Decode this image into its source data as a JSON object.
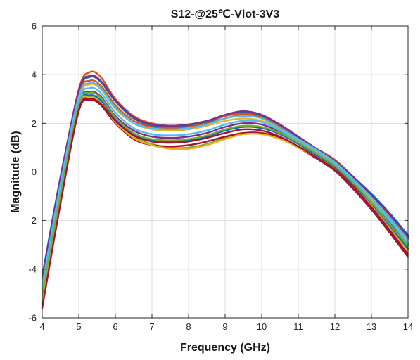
{
  "chart_data": {
    "type": "line",
    "title": "S12-@25℃-Vlot-3V3",
    "xlabel": "Frequency (GHz)",
    "ylabel": "Magnitude (dB)",
    "xlim": [
      4,
      14
    ],
    "ylim": [
      -6,
      6
    ],
    "xticks": [
      4,
      5,
      6,
      7,
      8,
      9,
      10,
      11,
      12,
      13,
      14
    ],
    "yticks": [
      -6,
      -4,
      -2,
      0,
      2,
      4,
      6
    ],
    "grid": true,
    "legend": "none",
    "x": [
      4.0,
      4.5,
      5.0,
      5.3,
      5.6,
      6.0,
      6.5,
      7.0,
      7.5,
      8.0,
      8.5,
      9.0,
      9.5,
      10.0,
      10.5,
      11.0,
      11.5,
      12.0,
      12.5,
      13.0,
      13.5,
      14.0
    ],
    "series": [
      {
        "color": "#0072BD",
        "values": [
          -4.3,
          -0.2,
          3.3,
          3.9,
          3.7,
          2.9,
          2.2,
          1.9,
          1.85,
          1.9,
          2.05,
          2.3,
          2.45,
          2.3,
          1.9,
          1.4,
          0.9,
          0.45,
          -0.2,
          -0.9,
          -1.7,
          -2.6
        ]
      },
      {
        "color": "#D95319",
        "values": [
          -4.5,
          -0.3,
          3.4,
          4.1,
          3.9,
          3.0,
          2.3,
          2.0,
          1.9,
          1.95,
          2.1,
          2.3,
          2.4,
          2.25,
          1.85,
          1.35,
          0.95,
          0.5,
          -0.2,
          -1.0,
          -1.8,
          -2.7
        ]
      },
      {
        "color": "#EDB120",
        "values": [
          -4.8,
          -0.6,
          3.0,
          3.6,
          3.4,
          2.6,
          2.0,
          1.75,
          1.7,
          1.75,
          1.9,
          2.1,
          2.2,
          2.1,
          1.75,
          1.3,
          0.85,
          0.35,
          -0.35,
          -1.1,
          -1.95,
          -2.9
        ]
      },
      {
        "color": "#7E2F8E",
        "values": [
          -5.0,
          -0.8,
          2.8,
          3.3,
          3.1,
          2.3,
          1.7,
          1.45,
          1.4,
          1.45,
          1.6,
          1.85,
          2.0,
          1.95,
          1.65,
          1.2,
          0.75,
          0.25,
          -0.45,
          -1.25,
          -2.1,
          -3.0
        ]
      },
      {
        "color": "#77AC30",
        "values": [
          -5.2,
          -1.0,
          2.6,
          3.1,
          2.9,
          2.1,
          1.45,
          1.15,
          1.0,
          1.0,
          1.15,
          1.4,
          1.6,
          1.6,
          1.4,
          1.05,
          0.65,
          0.15,
          -0.55,
          -1.35,
          -2.25,
          -3.2
        ]
      },
      {
        "color": "#4DBEEE",
        "values": [
          -4.9,
          -0.7,
          2.9,
          3.45,
          3.25,
          2.45,
          1.8,
          1.55,
          1.5,
          1.55,
          1.7,
          1.95,
          2.1,
          2.05,
          1.7,
          1.25,
          0.8,
          0.3,
          -0.4,
          -1.2,
          -2.0,
          -2.95
        ]
      },
      {
        "color": "#A2142F",
        "values": [
          -5.5,
          -1.2,
          2.5,
          2.95,
          2.75,
          2.0,
          1.35,
          1.1,
          1.05,
          1.1,
          1.25,
          1.45,
          1.6,
          1.6,
          1.4,
          1.0,
          0.55,
          0.05,
          -0.7,
          -1.55,
          -2.5,
          -3.5
        ]
      },
      {
        "color": "#0072BD",
        "values": [
          -5.4,
          -1.1,
          2.7,
          3.15,
          2.95,
          2.2,
          1.55,
          1.3,
          1.25,
          1.3,
          1.45,
          1.7,
          1.85,
          1.8,
          1.55,
          1.15,
          0.7,
          0.2,
          -0.5,
          -1.3,
          -2.2,
          -3.15
        ]
      },
      {
        "color": "#D95319",
        "values": [
          -4.6,
          -0.4,
          3.2,
          3.75,
          3.55,
          2.75,
          2.1,
          1.85,
          1.8,
          1.85,
          2.0,
          2.2,
          2.35,
          2.2,
          1.8,
          1.35,
          0.9,
          0.4,
          -0.3,
          -1.05,
          -1.85,
          -2.75
        ]
      },
      {
        "color": "#EDB120",
        "values": [
          -5.3,
          -1.05,
          2.65,
          3.05,
          2.85,
          2.05,
          1.4,
          1.1,
          0.95,
          0.95,
          1.1,
          1.35,
          1.55,
          1.55,
          1.35,
          1.0,
          0.6,
          0.1,
          -0.6,
          -1.4,
          -2.35,
          -3.3
        ]
      },
      {
        "color": "#7E2F8E",
        "values": [
          -4.4,
          -0.25,
          3.35,
          3.95,
          3.75,
          2.95,
          2.25,
          1.95,
          1.9,
          1.95,
          2.1,
          2.35,
          2.5,
          2.35,
          1.95,
          1.45,
          0.95,
          0.45,
          -0.2,
          -0.95,
          -1.75,
          -2.65
        ]
      },
      {
        "color": "#77AC30",
        "values": [
          -5.1,
          -0.9,
          2.75,
          3.25,
          3.05,
          2.25,
          1.6,
          1.35,
          1.3,
          1.35,
          1.5,
          1.75,
          1.9,
          1.85,
          1.6,
          1.2,
          0.75,
          0.25,
          -0.45,
          -1.25,
          -2.15,
          -3.05
        ]
      },
      {
        "color": "#4DBEEE",
        "values": [
          -4.7,
          -0.5,
          3.1,
          3.65,
          3.45,
          2.65,
          2.0,
          1.8,
          1.75,
          1.8,
          1.95,
          2.2,
          2.3,
          2.2,
          1.8,
          1.35,
          0.9,
          0.4,
          -0.3,
          -1.05,
          -1.9,
          -2.8
        ]
      },
      {
        "color": "#A2142F",
        "values": [
          -5.6,
          -1.3,
          2.55,
          3.0,
          2.8,
          2.1,
          1.5,
          1.25,
          1.2,
          1.25,
          1.4,
          1.6,
          1.75,
          1.7,
          1.45,
          1.05,
          0.6,
          0.1,
          -0.6,
          -1.45,
          -2.4,
          -3.4
        ]
      }
    ]
  }
}
